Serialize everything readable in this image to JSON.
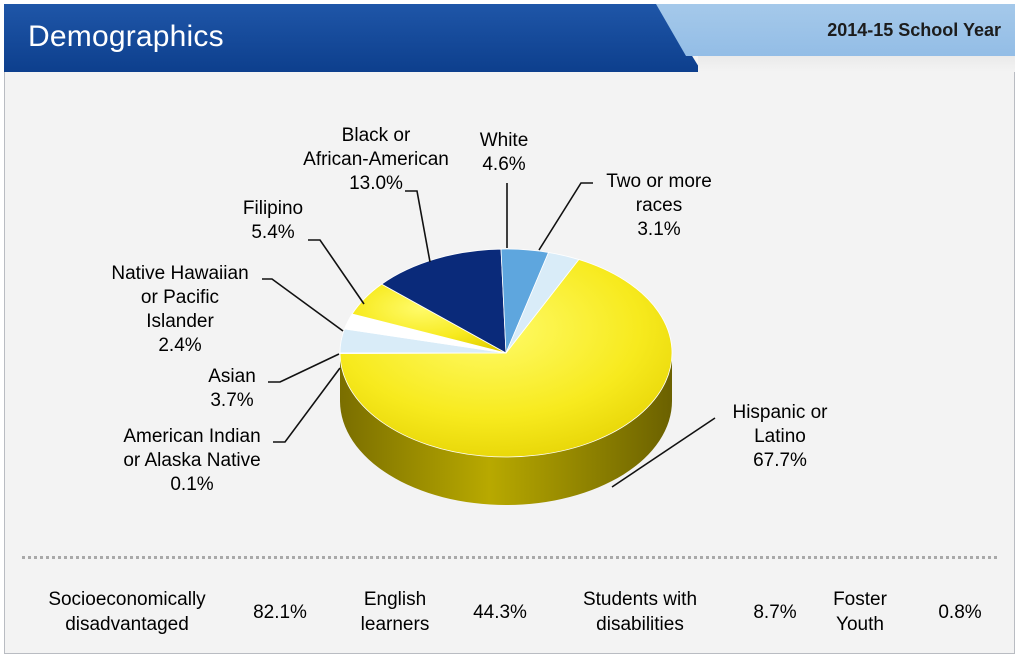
{
  "header": {
    "title": "Demographics",
    "school_year": "2014-15 School Year"
  },
  "colors": {
    "header_blue": "#0d3f8d",
    "header_light_blue": "#9fc5e8",
    "yellow": "#f7ea1e",
    "navy": "#0a2a7a",
    "light_blue": "#5ea6de",
    "pale_blue": "#d9ecf8"
  },
  "chart_data": {
    "type": "pie",
    "title": "",
    "slices": [
      {
        "name": "Hispanic or Latino",
        "value": 67.7,
        "lines": [
          "Hispanic or",
          "Latino",
          "67.7%"
        ],
        "color": "#f7ea1e"
      },
      {
        "name": "American Indian or Alaska Native",
        "value": 0.1,
        "lines": [
          "American Indian",
          "or Alaska Native",
          "0.1%"
        ],
        "color": "#ffffff"
      },
      {
        "name": "Asian",
        "value": 3.7,
        "lines": [
          "Asian",
          "3.7%"
        ],
        "color": "#d9ecf8"
      },
      {
        "name": "Native Hawaiian or Pacific Islander",
        "value": 2.4,
        "lines": [
          "Native Hawaiian",
          "or Pacific",
          "Islander",
          "2.4%"
        ],
        "color": "#ffffff"
      },
      {
        "name": "Filipino",
        "value": 5.4,
        "lines": [
          "Filipino",
          "5.4%"
        ],
        "color": "#f7ea1e"
      },
      {
        "name": "Black or African-American",
        "value": 13.0,
        "lines": [
          "Black or",
          "African-American",
          "13.0%"
        ],
        "color": "#0a2a7a"
      },
      {
        "name": "White",
        "value": 4.6,
        "lines": [
          "White",
          "4.6%"
        ],
        "color": "#5ea6de"
      },
      {
        "name": "Two or more races",
        "value": 3.1,
        "lines": [
          "Two or more",
          "races",
          "3.1%"
        ],
        "color": "#d9ecf8"
      }
    ]
  },
  "stats": [
    {
      "label_lines": [
        "Socioeconomically",
        "disadvantaged"
      ],
      "value": "82.1%"
    },
    {
      "label_lines": [
        "English",
        "learners"
      ],
      "value": "44.3%"
    },
    {
      "label_lines": [
        "Students with",
        "disabilities"
      ],
      "value": "8.7%"
    },
    {
      "label_lines": [
        "Foster",
        "Youth"
      ],
      "value": "0.8%"
    }
  ]
}
